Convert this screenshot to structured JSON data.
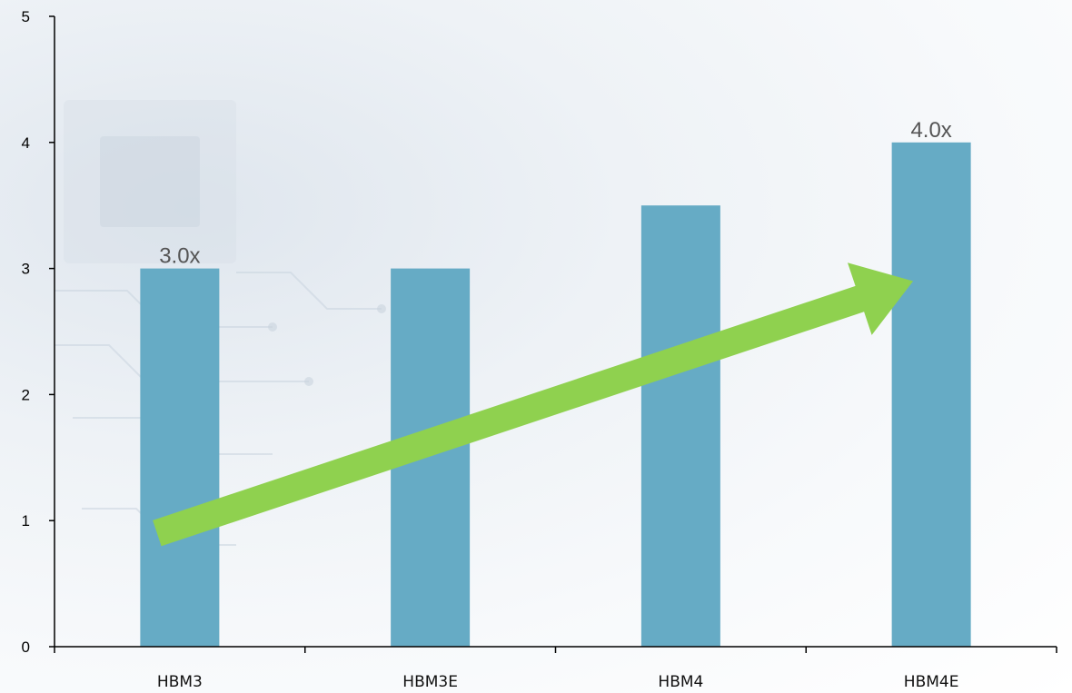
{
  "chart_data": {
    "type": "bar",
    "title": "",
    "xlabel": "",
    "ylabel": "",
    "categories": [
      "HBM3",
      "HBM3E",
      "HBM4",
      "HBM4E"
    ],
    "values": [
      3.0,
      3.0,
      3.5,
      4.0
    ],
    "data_labels": [
      "3.0x",
      "",
      "",
      "4.0x"
    ],
    "ylim": [
      0,
      5
    ],
    "yticks": [
      0,
      1,
      2,
      3,
      4,
      5
    ],
    "grid": false,
    "legend": "none",
    "bar_color": "#66abc5",
    "trend_arrow": {
      "color": "#8fd14f",
      "from": {
        "category": "HBM3",
        "value": 0.9
      },
      "to": {
        "category": "HBM4E",
        "value": 2.9
      }
    }
  }
}
